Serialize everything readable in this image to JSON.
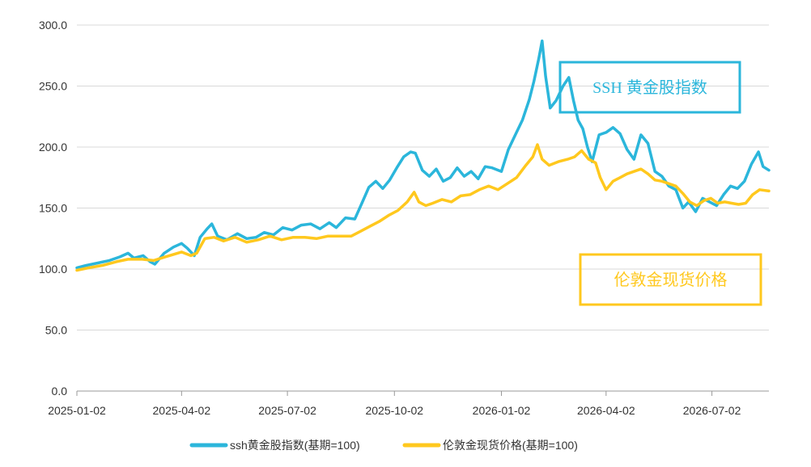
{
  "chart_data": {
    "type": "line",
    "ylim": [
      0,
      300
    ],
    "y_ticks": [
      "0.0",
      "50.0",
      "100.0",
      "150.0",
      "200.0",
      "250.0",
      "300.0"
    ],
    "x_range": [
      "2025-01-02",
      "2026-08-20"
    ],
    "x_ticks": [
      "2025-01-02",
      "2025-04-02",
      "2025-07-02",
      "2025-10-02",
      "2026-01-02",
      "2026-04-02",
      "2026-07-02"
    ],
    "grid": "horizontal",
    "legend_position": "bottom",
    "colors": {
      "ssh": "#2bb6db",
      "gold": "#ffc81e",
      "axis": "#999999",
      "grid": "#d9d9d9"
    },
    "series": [
      {
        "key": "ssh",
        "name": "ssh黄金股指数(基期=100)",
        "color": "#2bb6db",
        "points": [
          [
            "2025-01-02",
            101
          ],
          [
            "2025-01-10",
            103
          ],
          [
            "2025-01-20",
            105
          ],
          [
            "2025-01-30",
            107
          ],
          [
            "2025-02-08",
            110
          ],
          [
            "2025-02-15",
            113
          ],
          [
            "2025-02-20",
            109
          ],
          [
            "2025-02-28",
            111
          ],
          [
            "2025-03-06",
            106
          ],
          [
            "2025-03-10",
            104
          ],
          [
            "2025-03-18",
            113
          ],
          [
            "2025-03-26",
            118
          ],
          [
            "2025-04-02",
            121
          ],
          [
            "2025-04-07",
            117
          ],
          [
            "2025-04-13",
            111
          ],
          [
            "2025-04-18",
            126
          ],
          [
            "2025-04-24",
            133
          ],
          [
            "2025-04-28",
            137
          ],
          [
            "2025-05-03",
            127
          ],
          [
            "2025-05-11",
            124
          ],
          [
            "2025-05-20",
            129
          ],
          [
            "2025-05-28",
            125
          ],
          [
            "2025-06-05",
            126
          ],
          [
            "2025-06-12",
            130
          ],
          [
            "2025-06-20",
            128
          ],
          [
            "2025-06-28",
            134
          ],
          [
            "2025-07-06",
            132
          ],
          [
            "2025-07-14",
            136
          ],
          [
            "2025-07-22",
            137
          ],
          [
            "2025-07-30",
            133
          ],
          [
            "2025-08-07",
            138
          ],
          [
            "2025-08-13",
            134
          ],
          [
            "2025-08-21",
            142
          ],
          [
            "2025-08-29",
            141
          ],
          [
            "2025-09-04",
            154
          ],
          [
            "2025-09-10",
            167
          ],
          [
            "2025-09-16",
            172
          ],
          [
            "2025-09-22",
            166
          ],
          [
            "2025-09-28",
            173
          ],
          [
            "2025-10-04",
            183
          ],
          [
            "2025-10-10",
            192
          ],
          [
            "2025-10-16",
            196
          ],
          [
            "2025-10-20",
            195
          ],
          [
            "2025-10-26",
            181
          ],
          [
            "2025-11-01",
            176
          ],
          [
            "2025-11-07",
            182
          ],
          [
            "2025-11-13",
            172
          ],
          [
            "2025-11-19",
            175
          ],
          [
            "2025-11-25",
            183
          ],
          [
            "2025-12-01",
            176
          ],
          [
            "2025-12-07",
            180
          ],
          [
            "2025-12-13",
            174
          ],
          [
            "2025-12-19",
            184
          ],
          [
            "2025-12-25",
            183
          ],
          [
            "2026-01-02",
            180
          ],
          [
            "2026-01-08",
            198
          ],
          [
            "2026-01-14",
            210
          ],
          [
            "2026-01-20",
            222
          ],
          [
            "2026-01-26",
            239
          ],
          [
            "2026-01-30",
            254
          ],
          [
            "2026-02-03",
            272
          ],
          [
            "2026-02-06",
            287
          ],
          [
            "2026-02-09",
            258
          ],
          [
            "2026-02-13",
            232
          ],
          [
            "2026-02-18",
            238
          ],
          [
            "2026-02-24",
            250
          ],
          [
            "2026-03-01",
            257
          ],
          [
            "2026-03-05",
            238
          ],
          [
            "2026-03-09",
            222
          ],
          [
            "2026-03-13",
            215
          ],
          [
            "2026-03-17",
            200
          ],
          [
            "2026-03-21",
            188
          ],
          [
            "2026-03-27",
            210
          ],
          [
            "2026-04-02",
            212
          ],
          [
            "2026-04-08",
            216
          ],
          [
            "2026-04-14",
            211
          ],
          [
            "2026-04-20",
            198
          ],
          [
            "2026-04-26",
            190
          ],
          [
            "2026-05-02",
            210
          ],
          [
            "2026-05-08",
            203
          ],
          [
            "2026-05-14",
            180
          ],
          [
            "2026-05-20",
            176
          ],
          [
            "2026-05-26",
            168
          ],
          [
            "2026-06-01",
            165
          ],
          [
            "2026-06-07",
            150
          ],
          [
            "2026-06-12",
            155
          ],
          [
            "2026-06-18",
            147
          ],
          [
            "2026-06-24",
            158
          ],
          [
            "2026-06-30",
            155
          ],
          [
            "2026-07-06",
            152
          ],
          [
            "2026-07-12",
            161
          ],
          [
            "2026-07-18",
            168
          ],
          [
            "2026-07-24",
            166
          ],
          [
            "2026-07-30",
            172
          ],
          [
            "2026-08-05",
            186
          ],
          [
            "2026-08-11",
            196
          ],
          [
            "2026-08-15",
            184
          ],
          [
            "2026-08-20",
            181
          ]
        ]
      },
      {
        "key": "gold",
        "name": "伦敦金现货价格(基期=100)",
        "color": "#ffc81e",
        "points": [
          [
            "2025-01-02",
            99
          ],
          [
            "2025-01-12",
            101
          ],
          [
            "2025-01-24",
            103
          ],
          [
            "2025-02-05",
            106
          ],
          [
            "2025-02-15",
            108
          ],
          [
            "2025-02-27",
            108
          ],
          [
            "2025-03-09",
            107
          ],
          [
            "2025-03-19",
            110
          ],
          [
            "2025-04-02",
            114
          ],
          [
            "2025-04-10",
            111
          ],
          [
            "2025-04-15",
            113
          ],
          [
            "2025-04-22",
            125
          ],
          [
            "2025-04-30",
            126
          ],
          [
            "2025-05-08",
            123
          ],
          [
            "2025-05-18",
            126
          ],
          [
            "2025-05-28",
            122
          ],
          [
            "2025-06-07",
            124
          ],
          [
            "2025-06-17",
            127
          ],
          [
            "2025-06-27",
            124
          ],
          [
            "2025-07-07",
            126
          ],
          [
            "2025-07-17",
            126
          ],
          [
            "2025-07-27",
            125
          ],
          [
            "2025-08-06",
            127
          ],
          [
            "2025-08-16",
            127
          ],
          [
            "2025-08-26",
            127
          ],
          [
            "2025-09-03",
            131
          ],
          [
            "2025-09-11",
            135
          ],
          [
            "2025-09-19",
            139
          ],
          [
            "2025-09-27",
            144
          ],
          [
            "2025-10-05",
            148
          ],
          [
            "2025-10-13",
            155
          ],
          [
            "2025-10-19",
            163
          ],
          [
            "2025-10-23",
            155
          ],
          [
            "2025-10-29",
            152
          ],
          [
            "2025-11-04",
            154
          ],
          [
            "2025-11-12",
            157
          ],
          [
            "2025-11-20",
            155
          ],
          [
            "2025-11-28",
            160
          ],
          [
            "2025-12-06",
            161
          ],
          [
            "2025-12-14",
            165
          ],
          [
            "2025-12-22",
            168
          ],
          [
            "2025-12-30",
            165
          ],
          [
            "2026-01-07",
            170
          ],
          [
            "2026-01-15",
            175
          ],
          [
            "2026-01-23",
            185
          ],
          [
            "2026-01-29",
            192
          ],
          [
            "2026-02-02",
            202
          ],
          [
            "2026-02-06",
            190
          ],
          [
            "2026-02-12",
            185
          ],
          [
            "2026-02-20",
            188
          ],
          [
            "2026-02-28",
            190
          ],
          [
            "2026-03-06",
            192
          ],
          [
            "2026-03-12",
            197
          ],
          [
            "2026-03-18",
            190
          ],
          [
            "2026-03-24",
            187
          ],
          [
            "2026-03-28",
            175
          ],
          [
            "2026-04-02",
            165
          ],
          [
            "2026-04-08",
            172
          ],
          [
            "2026-04-14",
            175
          ],
          [
            "2026-04-20",
            178
          ],
          [
            "2026-04-26",
            180
          ],
          [
            "2026-05-02",
            182
          ],
          [
            "2026-05-08",
            178
          ],
          [
            "2026-05-14",
            173
          ],
          [
            "2026-05-20",
            172
          ],
          [
            "2026-05-26",
            170
          ],
          [
            "2026-06-01",
            168
          ],
          [
            "2026-06-07",
            162
          ],
          [
            "2026-06-13",
            155
          ],
          [
            "2026-06-19",
            152
          ],
          [
            "2026-06-25",
            156
          ],
          [
            "2026-07-01",
            158
          ],
          [
            "2026-07-07",
            154
          ],
          [
            "2026-07-13",
            155
          ],
          [
            "2026-07-19",
            154
          ],
          [
            "2026-07-25",
            153
          ],
          [
            "2026-07-31",
            154
          ],
          [
            "2026-08-06",
            161
          ],
          [
            "2026-08-12",
            165
          ],
          [
            "2026-08-20",
            164
          ]
        ]
      }
    ],
    "annotations": [
      {
        "key": "ssh",
        "text": "SSH 黄金股指数",
        "color": "#2bb6db"
      },
      {
        "key": "gold",
        "text": "伦敦金现货价格",
        "color": "#ffc81e"
      }
    ]
  }
}
